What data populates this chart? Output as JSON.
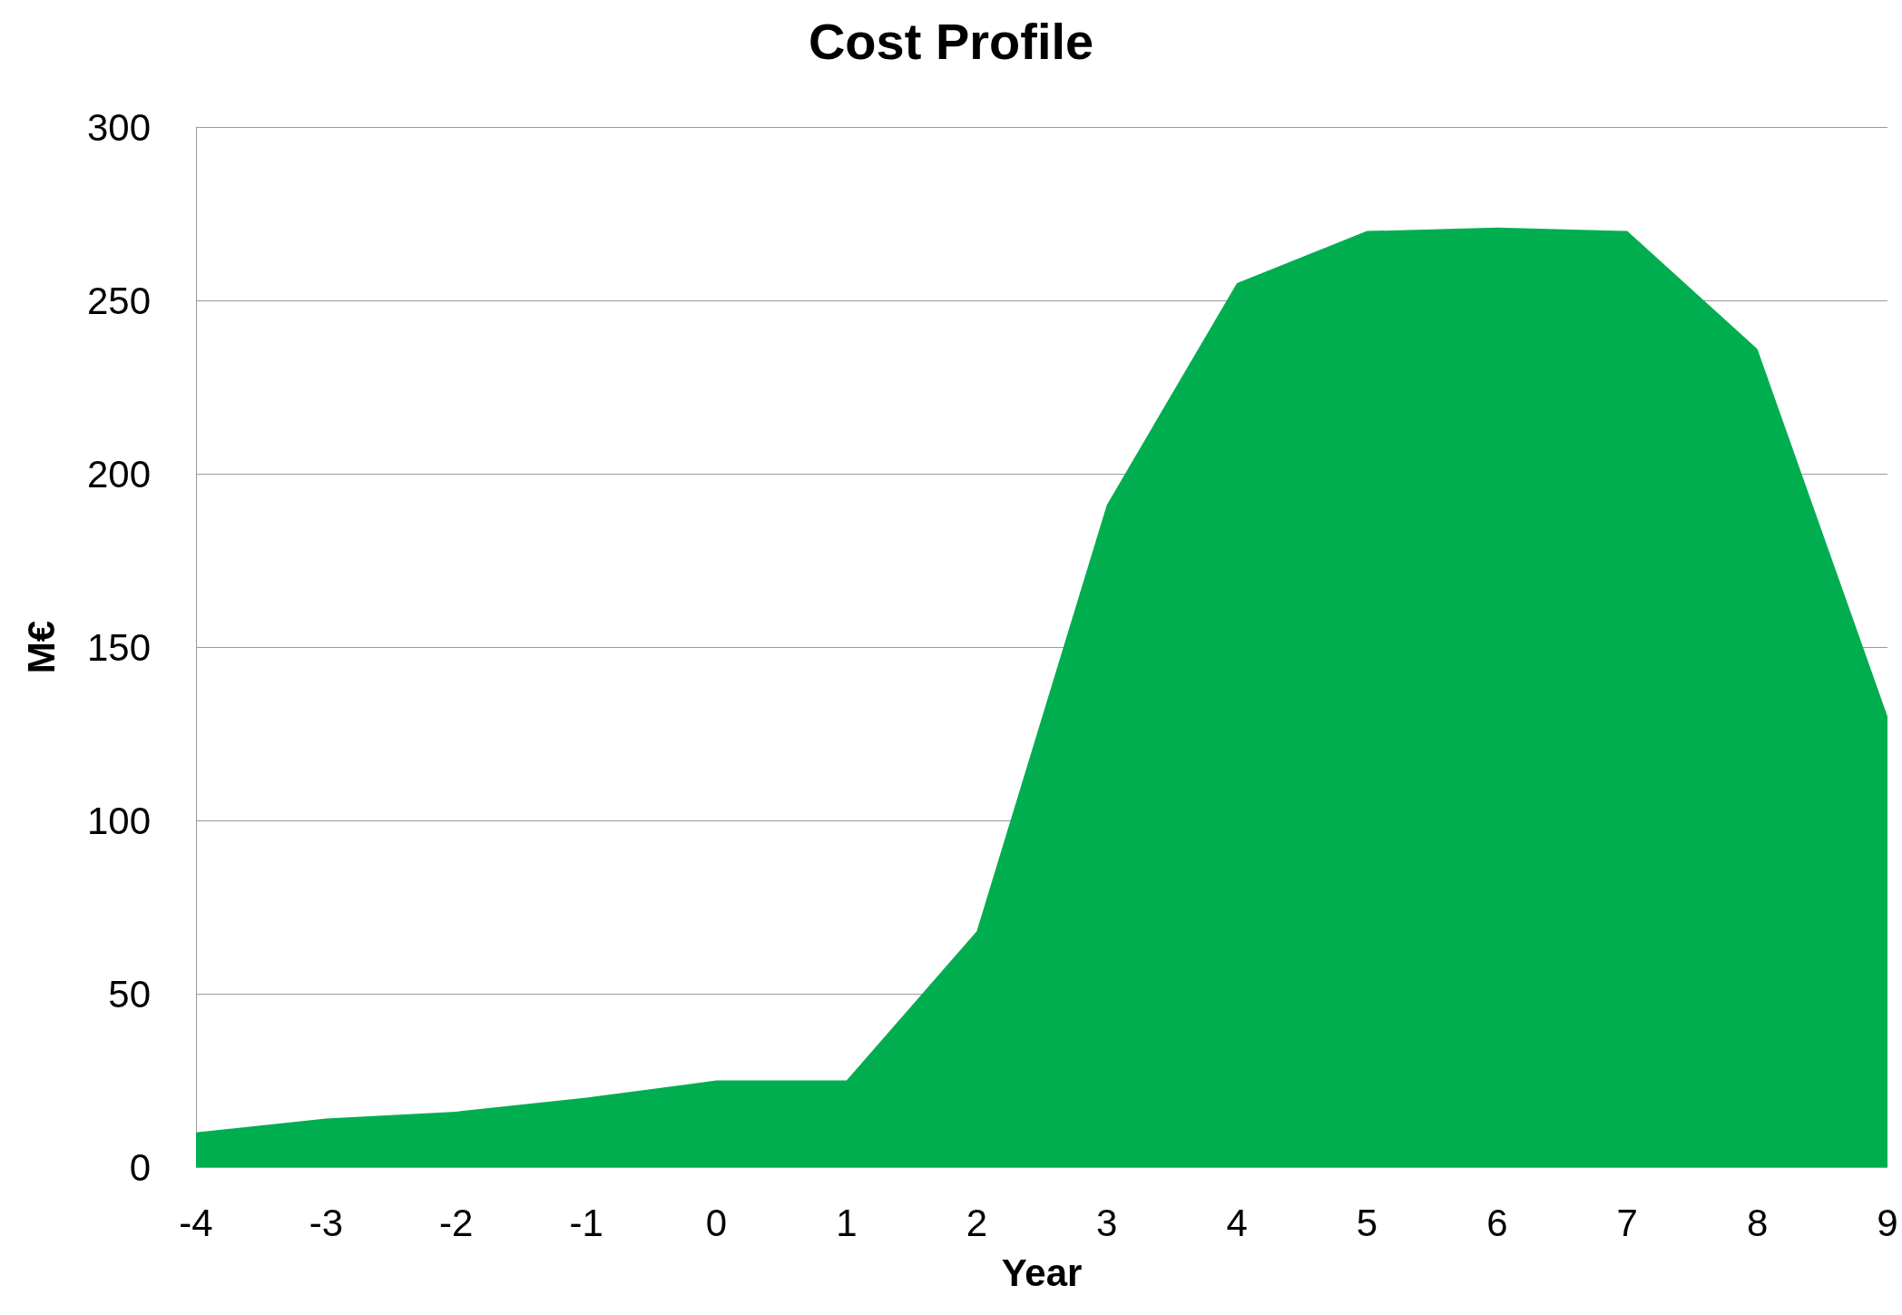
{
  "chart_data": {
    "type": "area",
    "title": "Cost Profile",
    "xlabel": "Year",
    "ylabel": "M€",
    "x": [
      -4,
      -3,
      -2,
      -1,
      0,
      1,
      2,
      3,
      4,
      5,
      6,
      7,
      8,
      9
    ],
    "series": [
      {
        "color": "#00ae50",
        "values": [
          10,
          14,
          16,
          20,
          25,
          25,
          68,
          191,
          255,
          270,
          271,
          270,
          236,
          130
        ]
      }
    ],
    "xlim": [
      -4,
      9
    ],
    "xticks": [
      -4,
      -3,
      -2,
      -1,
      0,
      1,
      2,
      3,
      4,
      5,
      6,
      7,
      8,
      9
    ],
    "ylim": [
      0,
      300
    ],
    "yticks": [
      0,
      50,
      100,
      150,
      200,
      250,
      300
    ],
    "grid": "y",
    "marker": "none"
  }
}
